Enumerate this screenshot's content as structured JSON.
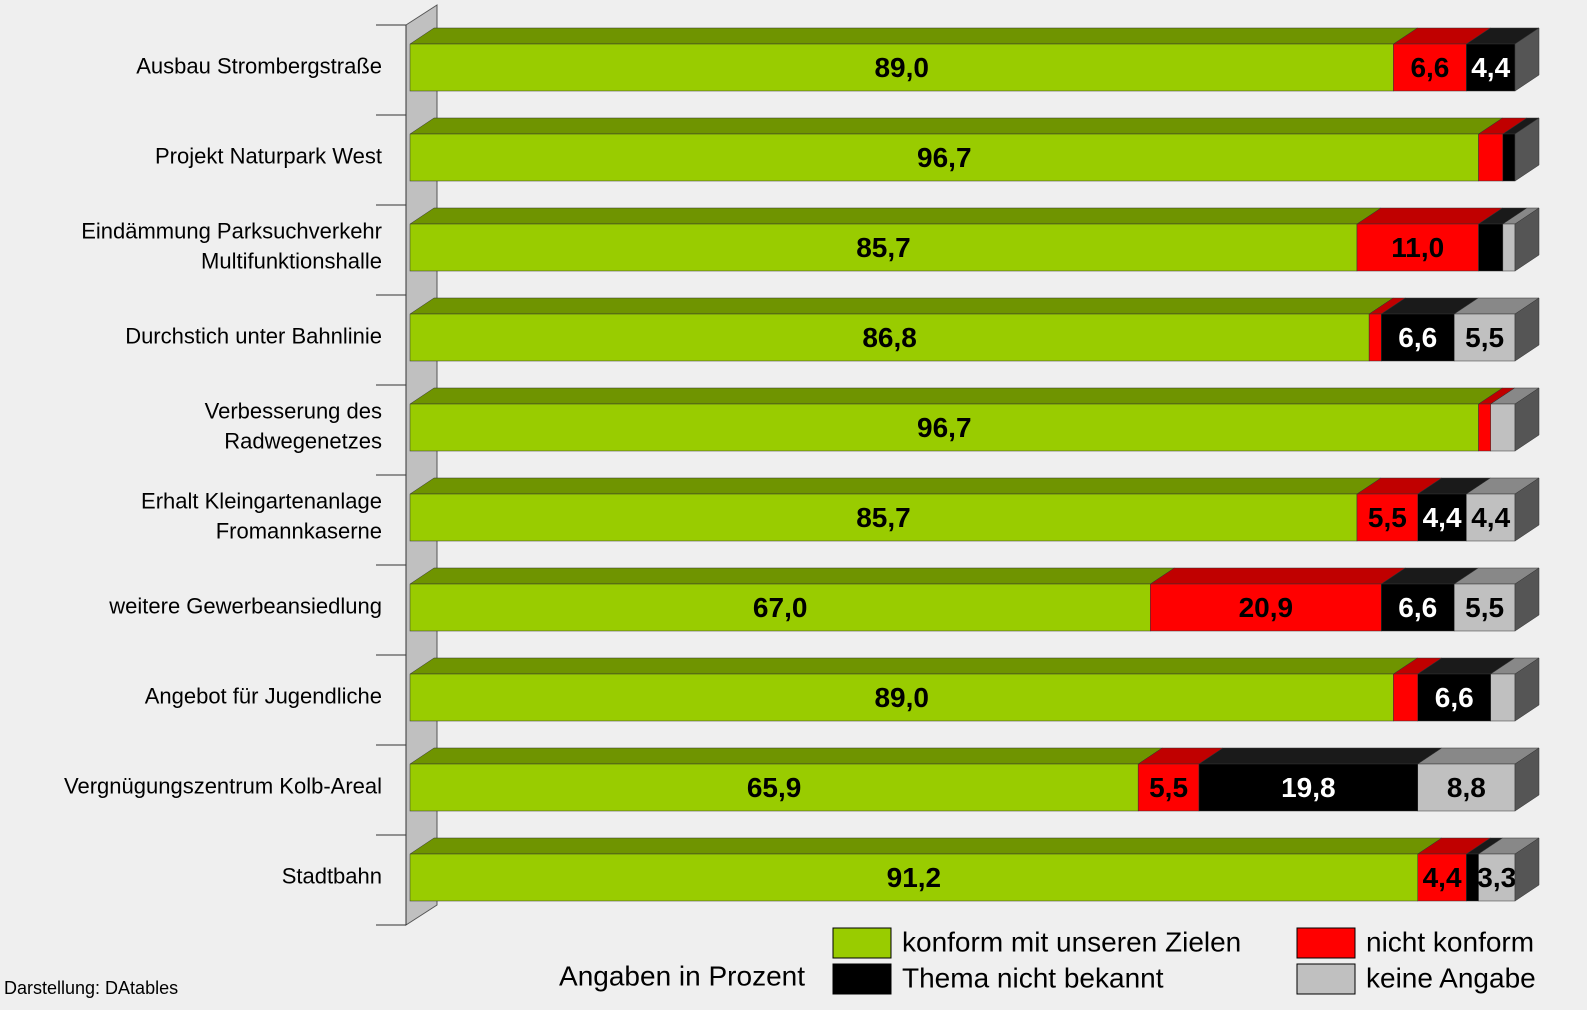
{
  "chart_data": {
    "type": "stacked-bar-3d",
    "categories": [
      "Ausbau Strombergstraße",
      "Projekt Naturpark West",
      "Eindämmung Parksuchverkehr\nMultifunktionshalle",
      "Durchstich unter Bahnlinie",
      "Verbesserung des\nRadwegenetzes",
      "Erhalt Kleingartenanlage\nFromannkaserne",
      "weitere Gewerbeansiedlung",
      "Angebot für Jugendliche",
      "Vergnügungszentrum Kolb-Areal",
      "Stadtbahn"
    ],
    "series": [
      {
        "name": "konform mit unseren Zielen",
        "color": "#99cc00",
        "top_color": "#6f9400",
        "label_color": "#000000",
        "values": [
          89.0,
          96.7,
          85.7,
          86.8,
          96.7,
          85.7,
          67.0,
          89.0,
          65.9,
          91.2
        ],
        "value_labels": [
          "89,0",
          "96,7",
          "85,7",
          "86,8",
          "96,7",
          "85,7",
          "67,0",
          "89,0",
          "65,9",
          "91,2"
        ]
      },
      {
        "name": "nicht konform",
        "color": "#ff0000",
        "top_color": "#c00000",
        "label_color": "#000000",
        "values": [
          6.6,
          2.2,
          11.0,
          1.1,
          1.1,
          5.5,
          20.9,
          2.2,
          5.5,
          4.4
        ],
        "value_labels": [
          "6,6",
          null,
          "11,0",
          null,
          null,
          "5,5",
          "20,9",
          null,
          "5,5",
          "4,4"
        ]
      },
      {
        "name": "Thema nicht bekannt",
        "color": "#000000",
        "top_color": "#1a1a1a",
        "label_color": "#ffffff",
        "values": [
          4.4,
          1.1,
          2.2,
          6.6,
          0,
          4.4,
          6.6,
          6.6,
          19.8,
          1.1
        ],
        "value_labels": [
          "4,4",
          null,
          null,
          "6,6",
          null,
          "4,4",
          "6,6",
          "6,6",
          "19,8",
          null
        ]
      },
      {
        "name": "keine Angabe",
        "color": "#c0c0c0",
        "top_color": "#888888",
        "label_color": "#000000",
        "values": [
          0,
          0,
          1.1,
          5.5,
          2.2,
          4.4,
          5.5,
          2.2,
          8.8,
          3.3
        ],
        "value_labels": [
          null,
          null,
          null,
          "5,5",
          null,
          "4,4",
          "5,5",
          null,
          "8,8",
          "3,3"
        ]
      }
    ],
    "xlim": [
      0,
      100
    ],
    "note_units": "Angaben in Prozent",
    "source": "Darstellung:  DAtables"
  }
}
